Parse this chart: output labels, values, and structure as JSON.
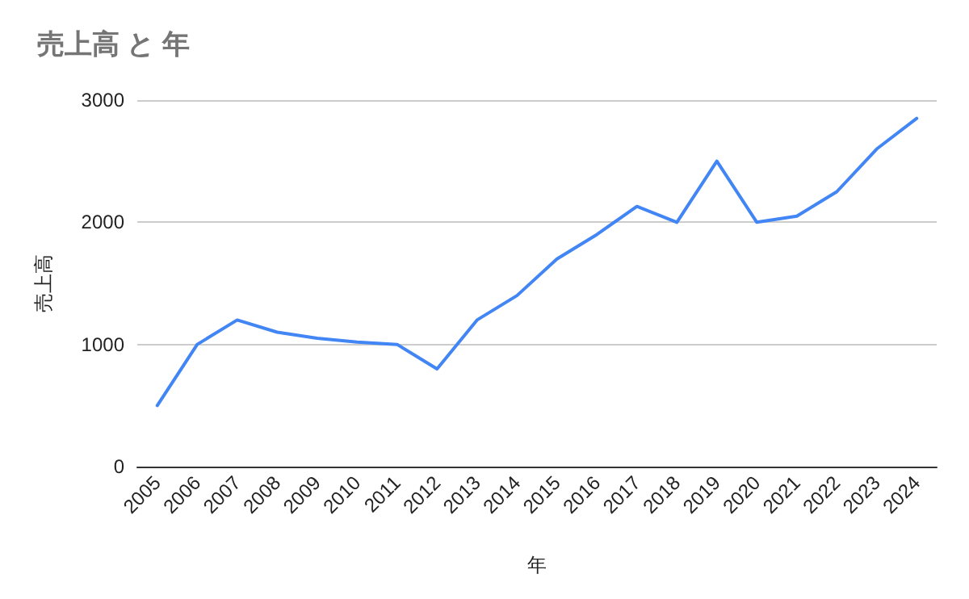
{
  "chart_data": {
    "type": "line",
    "title": "売上高 と 年",
    "xlabel": "年",
    "ylabel": "売上高",
    "categories": [
      "2005",
      "2006",
      "2007",
      "2008",
      "2009",
      "2010",
      "2011",
      "2012",
      "2013",
      "2014",
      "2015",
      "2016",
      "2017",
      "2018",
      "2019",
      "2020",
      "2021",
      "2022",
      "2023",
      "2024"
    ],
    "series": [
      {
        "color": "#4285f4",
        "values": [
          500,
          1000,
          1200,
          1100,
          1050,
          1020,
          1000,
          800,
          1200,
          1400,
          1700,
          1900,
          2130,
          2000,
          2500,
          2000,
          2050,
          2250,
          2600,
          2850
        ]
      }
    ],
    "ylim": [
      0,
      3000
    ],
    "yticks": [
      0,
      1000,
      2000,
      3000
    ],
    "grid": "y",
    "marker": "none",
    "line_style": "solid"
  }
}
